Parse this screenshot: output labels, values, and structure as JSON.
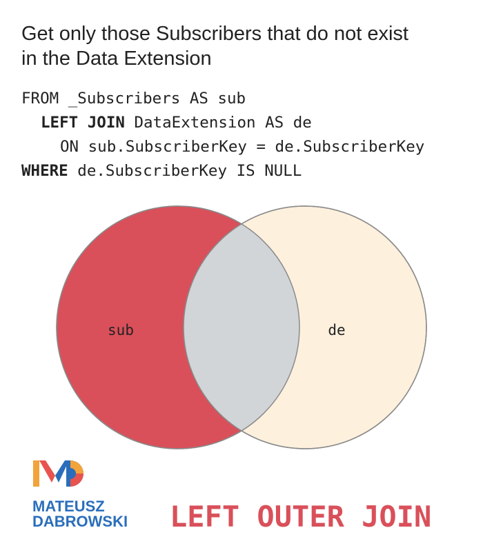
{
  "title": {
    "lines": [
      "Get only those Subscribers that do not exist",
      "in the Data Extension"
    ]
  },
  "code": {
    "lines": [
      {
        "text": "FROM _Subscribers AS sub"
      },
      {
        "bold": "LEFT JOIN",
        "text": " DataExtension AS de"
      },
      {
        "text": "ON sub.SubscriberKey = de.SubscriberKey"
      },
      {
        "bold": "WHERE",
        "text": " de.SubscriberKey IS NULL"
      }
    ]
  },
  "venn": {
    "left": {
      "label": "sub"
    },
    "right": {
      "label": "de"
    }
  },
  "logo": {
    "lines": [
      "MATEUSZ",
      "DABROWSKI"
    ]
  },
  "footer": {
    "label": "LEFT OUTER JOIN"
  }
}
